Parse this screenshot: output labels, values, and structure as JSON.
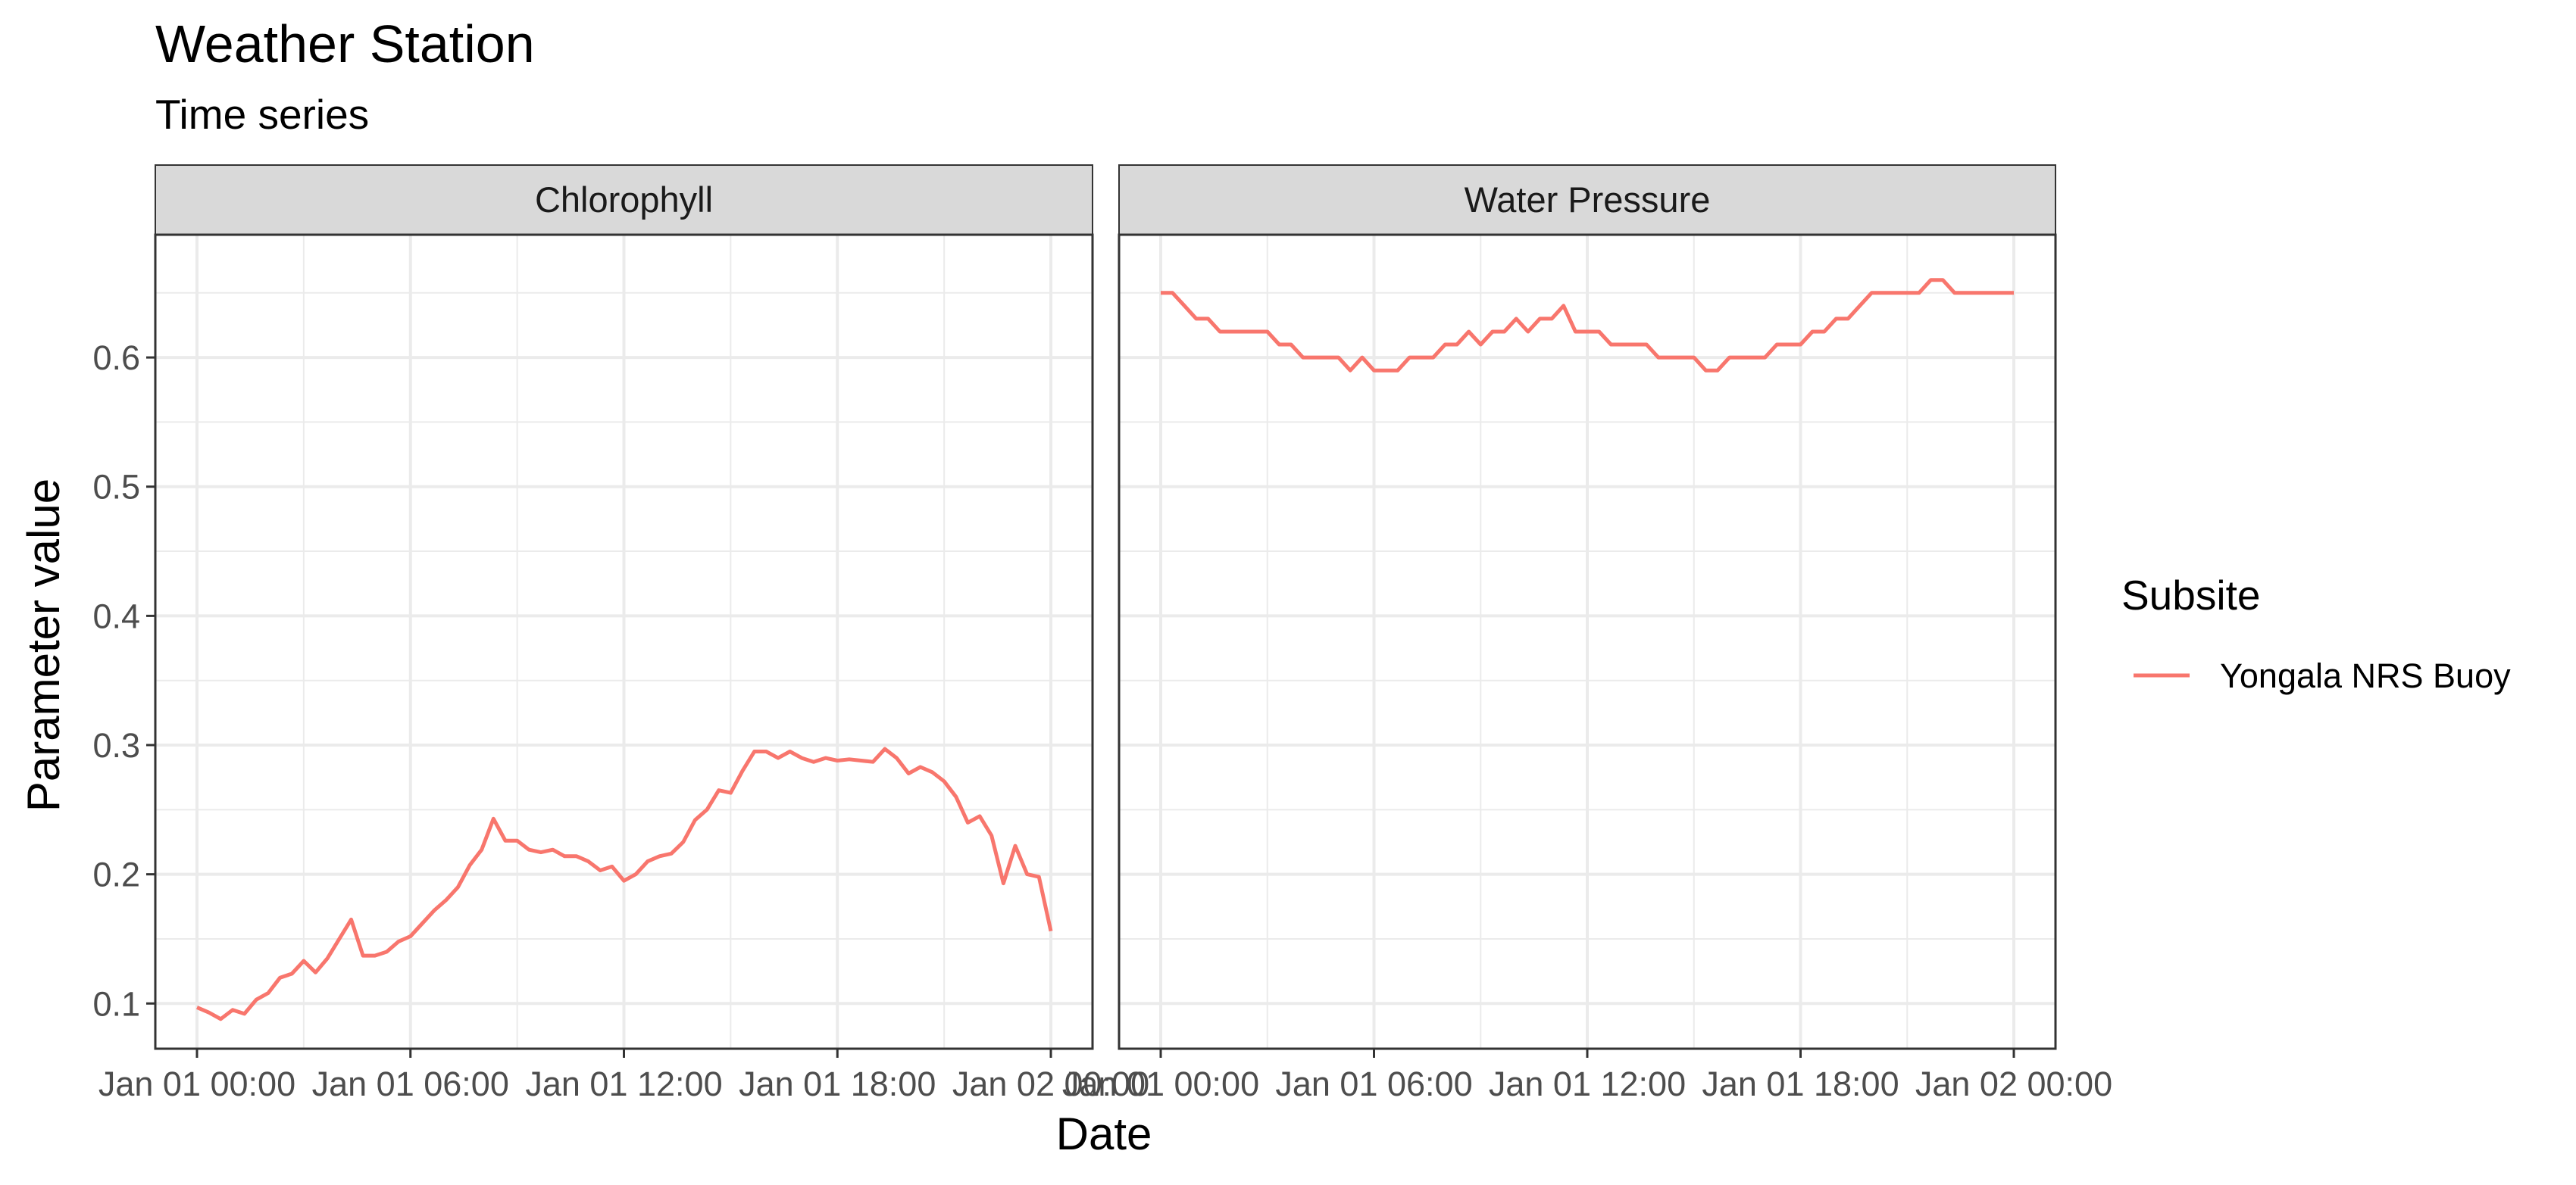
{
  "title": "Weather Station",
  "subtitle": "Time series",
  "colors": {
    "series": "#F8766D",
    "strip_bg": "#D9D9D9",
    "grid": "#EBEBEB",
    "frame": "#333333"
  },
  "chart_data": {
    "type": "line",
    "title": "Weather Station",
    "subtitle": "Time series",
    "xlabel": "Date",
    "ylabel": "Parameter value",
    "ylim": [
      0.065,
      0.695
    ],
    "y_ticks": [
      0.1,
      0.2,
      0.3,
      0.4,
      0.5,
      0.6
    ],
    "y_tick_labels": [
      "0.1",
      "0.2",
      "0.3",
      "0.4",
      "0.5",
      "0.6"
    ],
    "x_ticks": [
      "2000-01-01 00:00",
      "2000-01-01 06:00",
      "2000-01-01 12:00",
      "2000-01-01 18:00",
      "2000-01-02 00:00"
    ],
    "x_tick_labels": [
      "Jan 01 00:00",
      "Jan 01 06:00",
      "Jan 01 12:00",
      "Jan 01 18:00",
      "Jan 02 00:00"
    ],
    "grid": true,
    "legend": {
      "title": "Subsite",
      "position": "right",
      "entries": [
        "Yongala NRS Buoy"
      ]
    },
    "facets": [
      {
        "label": "Chlorophyll",
        "series": [
          {
            "name": "Yongala NRS Buoy",
            "x": [
              "00:00",
              "00:20",
              "00:40",
              "01:00",
              "01:20",
              "01:40",
              "02:00",
              "02:20",
              "02:40",
              "03:00",
              "03:20",
              "03:40",
              "04:00",
              "04:20",
              "04:40",
              "05:00",
              "05:20",
              "05:40",
              "06:00",
              "06:20",
              "06:40",
              "07:00",
              "07:20",
              "07:40",
              "08:00",
              "08:20",
              "08:40",
              "09:00",
              "09:20",
              "09:40",
              "10:00",
              "10:20",
              "10:40",
              "11:00",
              "11:20",
              "11:40",
              "12:00",
              "12:20",
              "12:40",
              "13:00",
              "13:20",
              "13:40",
              "14:00",
              "14:20",
              "14:40",
              "15:00",
              "15:20",
              "15:40",
              "16:00",
              "16:20",
              "16:40",
              "17:00",
              "17:20",
              "17:40",
              "18:00",
              "18:20",
              "18:40",
              "19:00",
              "19:20",
              "19:40",
              "20:00",
              "20:20",
              "20:40",
              "21:00",
              "21:20",
              "21:40",
              "22:00",
              "22:20",
              "22:40",
              "23:00",
              "23:20",
              "23:40",
              "24:00"
            ],
            "y": [
              0.097,
              0.093,
              0.088,
              0.095,
              0.092,
              0.103,
              0.108,
              0.12,
              0.123,
              0.133,
              0.124,
              0.135,
              0.15,
              0.165,
              0.137,
              0.137,
              0.14,
              0.148,
              0.152,
              0.162,
              0.172,
              0.18,
              0.19,
              0.207,
              0.219,
              0.243,
              0.226,
              0.226,
              0.219,
              0.217,
              0.219,
              0.214,
              0.214,
              0.21,
              0.203,
              0.206,
              0.195,
              0.2,
              0.21,
              0.214,
              0.216,
              0.225,
              0.242,
              0.25,
              0.265,
              0.263,
              0.28,
              0.295,
              0.295,
              0.29,
              0.295,
              0.29,
              0.287,
              0.29,
              0.288,
              0.289,
              0.288,
              0.287,
              0.297,
              0.29,
              0.278,
              0.283,
              0.279,
              0.272,
              0.26,
              0.24,
              0.245,
              0.23,
              0.193,
              0.222,
              0.2,
              0.198,
              0.156
            ]
          }
        ]
      },
      {
        "label": "Water Pressure",
        "series": [
          {
            "name": "Yongala NRS Buoy",
            "x": [
              "00:00",
              "00:20",
              "00:40",
              "01:00",
              "01:20",
              "01:40",
              "02:00",
              "02:20",
              "02:40",
              "03:00",
              "03:20",
              "03:40",
              "04:00",
              "04:20",
              "04:40",
              "05:00",
              "05:20",
              "05:40",
              "06:00",
              "06:20",
              "06:40",
              "07:00",
              "07:20",
              "07:40",
              "08:00",
              "08:20",
              "08:40",
              "09:00",
              "09:20",
              "09:40",
              "10:00",
              "10:20",
              "10:40",
              "11:00",
              "11:20",
              "11:40",
              "12:00",
              "12:20",
              "12:40",
              "13:00",
              "13:20",
              "13:40",
              "14:00",
              "14:20",
              "14:40",
              "15:00",
              "15:20",
              "15:40",
              "16:00",
              "16:20",
              "16:40",
              "17:00",
              "17:20",
              "17:40",
              "18:00",
              "18:20",
              "18:40",
              "19:00",
              "19:20",
              "19:40",
              "20:00",
              "20:20",
              "20:40",
              "21:00",
              "21:20",
              "21:40",
              "22:00",
              "22:20",
              "22:40",
              "23:00",
              "23:20",
              "23:40",
              "24:00"
            ],
            "y": [
              0.65,
              0.65,
              0.64,
              0.63,
              0.63,
              0.62,
              0.62,
              0.62,
              0.62,
              0.62,
              0.61,
              0.61,
              0.6,
              0.6,
              0.6,
              0.6,
              0.59,
              0.6,
              0.59,
              0.59,
              0.59,
              0.6,
              0.6,
              0.6,
              0.61,
              0.61,
              0.62,
              0.61,
              0.62,
              0.62,
              0.63,
              0.62,
              0.63,
              0.63,
              0.64,
              0.62,
              0.62,
              0.62,
              0.61,
              0.61,
              0.61,
              0.61,
              0.6,
              0.6,
              0.6,
              0.6,
              0.59,
              0.59,
              0.6,
              0.6,
              0.6,
              0.6,
              0.61,
              0.61,
              0.61,
              0.62,
              0.62,
              0.63,
              0.63,
              0.64,
              0.65,
              0.65,
              0.65,
              0.65,
              0.65,
              0.66,
              0.66,
              0.65,
              0.65,
              0.65,
              0.65,
              0.65,
              0.65
            ]
          }
        ]
      }
    ]
  }
}
